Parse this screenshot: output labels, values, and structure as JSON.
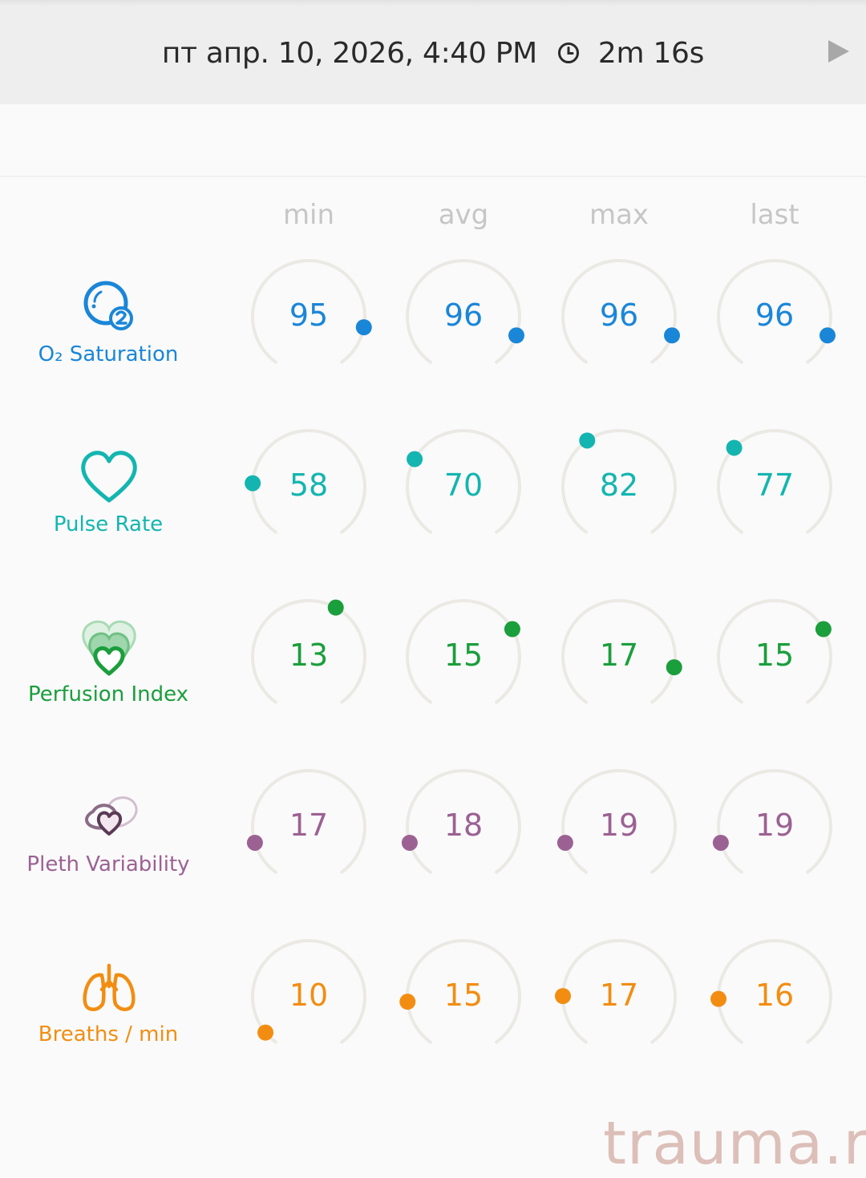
{
  "header": {
    "datetime": "пт апр. 10, 2026, 4:40 PM",
    "duration": "2m 16s",
    "clock_icon": "clock-icon",
    "play_icon": "play-icon"
  },
  "columns": [
    "min",
    "avg",
    "max",
    "last"
  ],
  "metrics": [
    {
      "label": "O₂ Saturation",
      "icon": "o2-saturation-icon",
      "color": "#1a86d8",
      "values": [
        95,
        96,
        96,
        96
      ],
      "dial_fraction": [
        0.85,
        0.88,
        0.88,
        0.88
      ]
    },
    {
      "label": "Pulse Rate",
      "icon": "heart-icon",
      "color": "#14b5b0",
      "values": [
        58,
        70,
        82,
        77
      ],
      "dial_fraction": [
        0.2,
        0.29,
        0.38,
        0.34
      ]
    },
    {
      "label": "Perfusion Index",
      "icon": "perfusion-index-icon",
      "color": "#1b9e3c",
      "values": [
        13,
        15,
        17,
        15
      ],
      "dial_fraction": [
        0.6,
        0.71,
        0.85,
        0.71
      ]
    },
    {
      "label": "Pleth Variability",
      "icon": "pleth-variability-icon",
      "color": "#9c6193",
      "values": [
        17,
        18,
        19,
        19
      ],
      "dial_fraction": [
        0.13,
        0.13,
        0.13,
        0.13
      ]
    },
    {
      "label": "Breaths / min",
      "icon": "lungs-icon",
      "color": "#f28d12",
      "values": [
        10,
        15,
        17,
        16
      ],
      "dial_fraction": [
        0.05,
        0.17,
        0.19,
        0.18
      ]
    }
  ],
  "watermark": "trauma.ru"
}
